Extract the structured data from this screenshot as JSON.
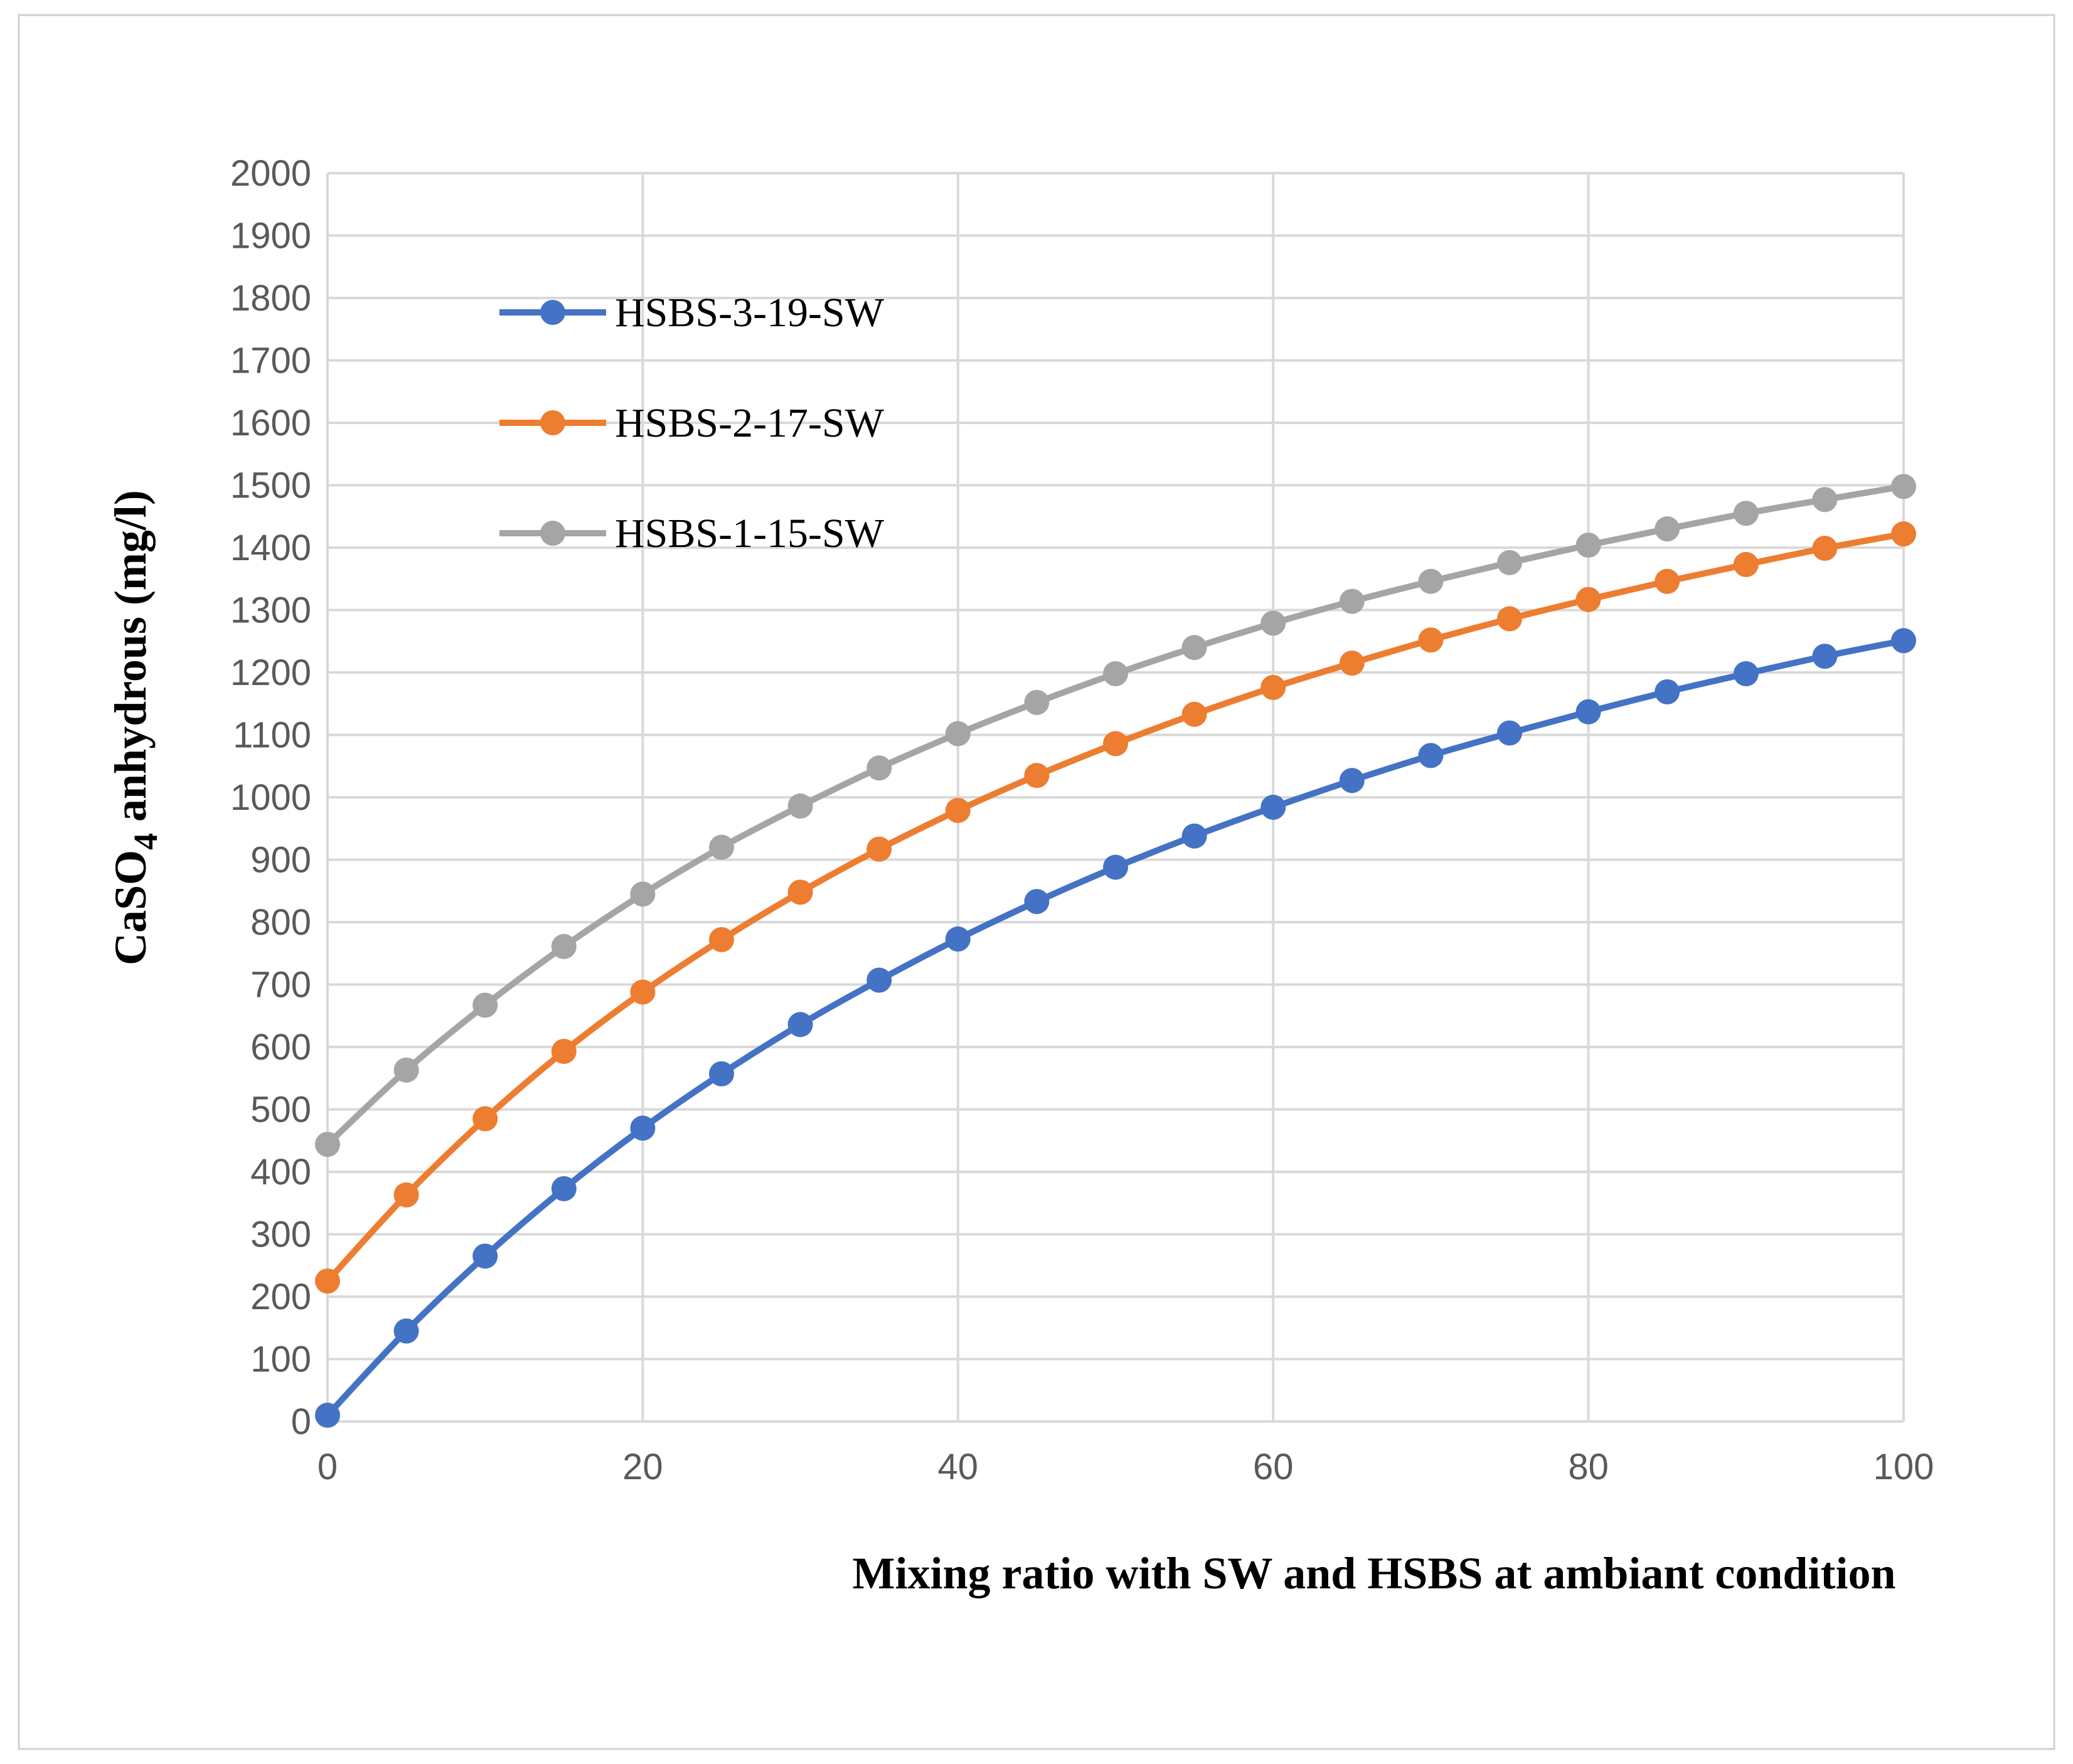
{
  "chart_data": {
    "type": "line",
    "title": "",
    "xlabel": "Mixing ratio with SW and HSBS at ambiant condition",
    "ylabel_main": "CaSO",
    "ylabel_sub": "4",
    "ylabel_rest": " anhydrous (mg/l)",
    "xlim": [
      0,
      100
    ],
    "ylim": [
      0,
      2000
    ],
    "x_ticks": [
      "0",
      "20",
      "40",
      "60",
      "80",
      "100"
    ],
    "y_ticks": [
      "0",
      "100",
      "200",
      "300",
      "400",
      "500",
      "600",
      "700",
      "800",
      "900",
      "1000",
      "1100",
      "1200",
      "1300",
      "1400",
      "1500",
      "1600",
      "1700",
      "1800",
      "1900",
      "2000"
    ],
    "grid": true,
    "legend_position": "top-left",
    "x": [
      0,
      5,
      10,
      15,
      20,
      25,
      30,
      35,
      40,
      45,
      50,
      55,
      60,
      65,
      70,
      75,
      80,
      85,
      90,
      95,
      100
    ],
    "series": [
      {
        "name": "HSBS-3-19-SW",
        "color": "#4472C4",
        "values": [
          10,
          145,
          265,
          373,
          470,
          557,
          636,
          707,
          773,
          833,
          888,
          938,
          984,
          1027,
          1067,
          1103,
          1137,
          1169,
          1198,
          1226,
          1251
        ]
      },
      {
        "name": "HSBS-2-17-SW",
        "color": "#ED7D31",
        "values": [
          225,
          363,
          485,
          593,
          688,
          772,
          848,
          917,
          979,
          1035,
          1086,
          1133,
          1176,
          1215,
          1252,
          1286,
          1317,
          1346,
          1373,
          1399,
          1422
        ]
      },
      {
        "name": "HSBS-1-15-SW",
        "color": "#A5A5A5",
        "values": [
          444,
          563,
          667,
          761,
          845,
          920,
          986,
          1047,
          1102,
          1152,
          1198,
          1240,
          1279,
          1314,
          1346,
          1376,
          1404,
          1430,
          1455,
          1477,
          1498
        ]
      }
    ]
  }
}
